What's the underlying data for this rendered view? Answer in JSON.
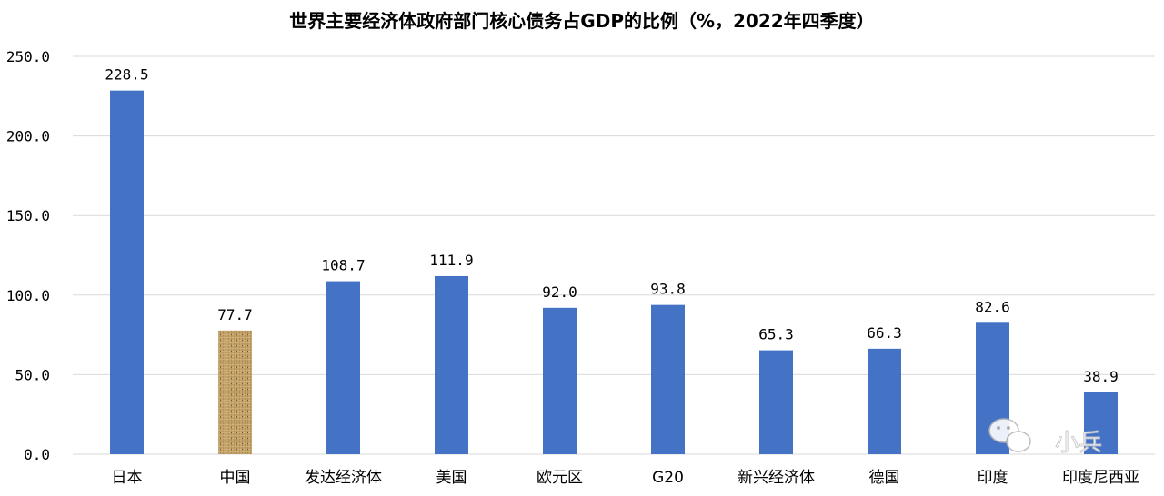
{
  "chart_data": {
    "type": "bar",
    "title": "世界主要经济体政府部门核心债务占GDP的比例（%，2022年四季度）",
    "categories": [
      "日本",
      "中国",
      "发达经济体",
      "美国",
      "欧元区",
      "G20",
      "新兴经济体",
      "德国",
      "印度",
      "印度尼西亚"
    ],
    "values": [
      228.5,
      77.7,
      108.7,
      111.9,
      92.0,
      93.8,
      65.3,
      66.3,
      82.6,
      38.9
    ],
    "value_labels": [
      "228.5",
      "77.7",
      "108.7",
      "111.9",
      "92.0",
      "93.8",
      "65.3",
      "66.3",
      "82.6",
      "38.9"
    ],
    "yticks": [
      0,
      50,
      100,
      150,
      200,
      250
    ],
    "ytick_labels": [
      "0.0",
      "50.0",
      "100.0",
      "150.0",
      "200.0",
      "250.0"
    ],
    "ylim": [
      0,
      250
    ],
    "grid": true,
    "legend": "none",
    "colors": {
      "bar": "#4472C4",
      "highlight_texture_base": "#C8A56A",
      "highlight_texture_dark": "#8B6B3A",
      "grid": "#d9d9d9"
    },
    "highlighted_category": "中国"
  },
  "watermark": {
    "icon": "wechat-icon",
    "text": "小兵"
  }
}
